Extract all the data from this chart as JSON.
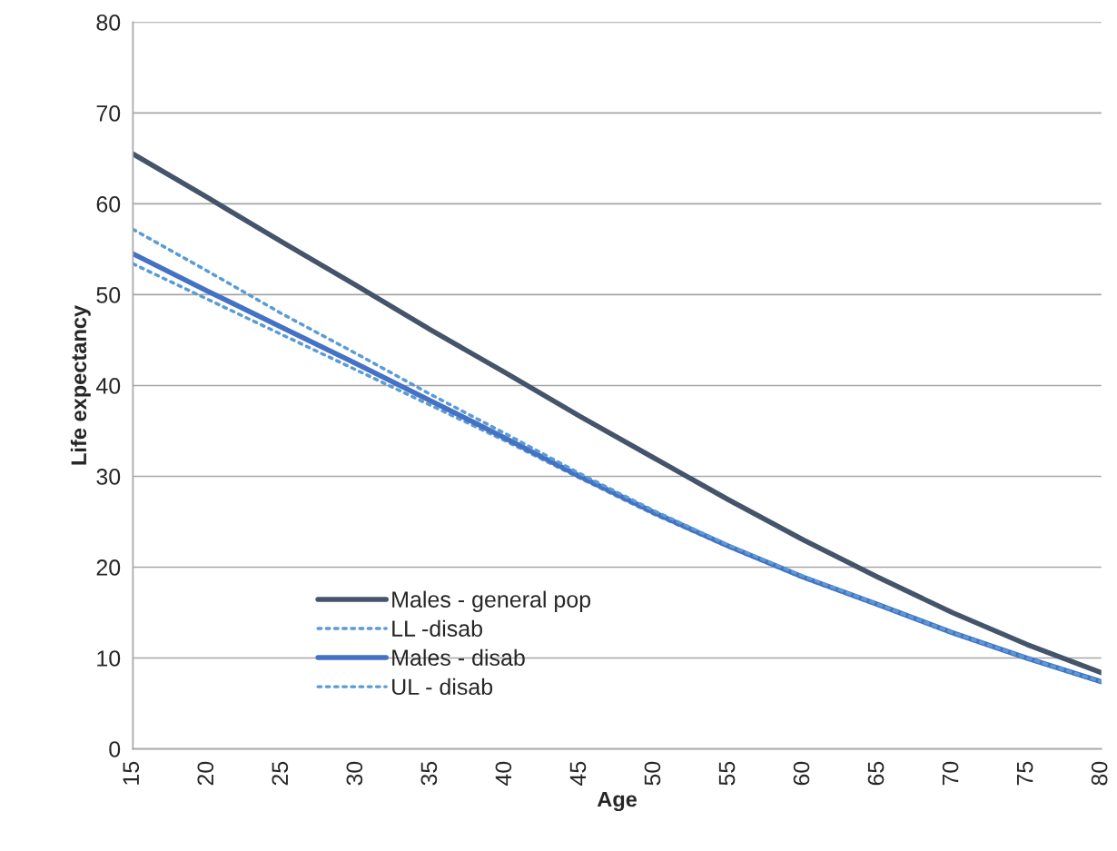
{
  "chart_data": {
    "type": "line",
    "xlabel": "Age",
    "ylabel": "Life expectancy",
    "x": [
      15,
      20,
      25,
      30,
      35,
      40,
      45,
      50,
      55,
      60,
      65,
      70,
      75,
      80
    ],
    "series": [
      {
        "name": "Males - general pop",
        "color": "#44546a",
        "line_style": "solid",
        "values": [
          65.5,
          60.7,
          55.8,
          51.0,
          46.1,
          41.4,
          36.6,
          32.0,
          27.4,
          23.0,
          18.9,
          15.0,
          11.5,
          8.4
        ]
      },
      {
        "name": "LL -disab",
        "color": "#5b9bd5",
        "line_style": "dotted",
        "values": [
          53.4,
          49.5,
          45.6,
          41.7,
          37.8,
          33.9,
          29.8,
          25.8,
          22.2,
          18.8,
          15.8,
          12.7,
          9.9,
          7.3
        ]
      },
      {
        "name": "Males - disab",
        "color": "#4472c4",
        "line_style": "solid",
        "values": [
          54.5,
          50.4,
          46.4,
          42.4,
          38.3,
          34.2,
          30.0,
          26.0,
          22.3,
          18.9,
          15.9,
          12.8,
          10.0,
          7.4
        ]
      },
      {
        "name": "UL - disab",
        "color": "#5b9bd5",
        "line_style": "dotted",
        "values": [
          57.2,
          52.6,
          47.9,
          43.5,
          39.0,
          34.7,
          30.3,
          26.2,
          22.4,
          19.0,
          15.9,
          12.8,
          10.0,
          7.4
        ]
      }
    ],
    "xlim": [
      15,
      80
    ],
    "xticks": [
      15,
      20,
      25,
      30,
      35,
      40,
      45,
      50,
      55,
      60,
      65,
      70,
      75,
      80
    ],
    "ylim": [
      0,
      80
    ],
    "yticks": [
      0,
      10,
      20,
      30,
      40,
      50,
      60,
      70,
      80
    ],
    "grid": "y",
    "legend": "bottom left",
    "marker": "none"
  }
}
